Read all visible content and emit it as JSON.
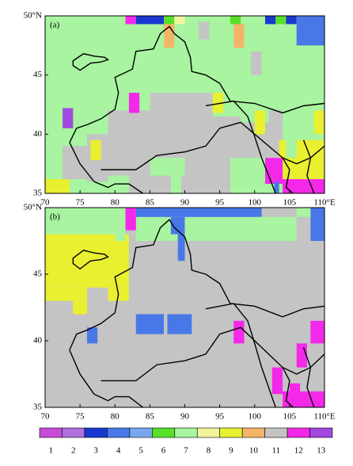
{
  "xlim": [
    70,
    110
  ],
  "ylim": [
    35,
    50
  ],
  "xticks": [
    70,
    75,
    80,
    85,
    90,
    95,
    100,
    105,
    {
      "value": 110,
      "label": "110°E"
    }
  ],
  "yticks": [
    35,
    40,
    45,
    {
      "value": 50,
      "label": "50°N"
    }
  ],
  "legend": {
    "categories": [
      1,
      2,
      3,
      4,
      5,
      6,
      7,
      8,
      9,
      10,
      11,
      12,
      13
    ],
    "colors": [
      "#c84ad8",
      "#b070e0",
      "#1838d0",
      "#4878e8",
      "#78a8ec",
      "#58e028",
      "#a8f4a0",
      "#f0f49c",
      "#e8f030",
      "#f4b468",
      "#c4c4c4",
      "#f428e8",
      "#a048e0"
    ]
  },
  "panels": [
    {
      "label": "(a)",
      "background": 7,
      "patches": [
        [
          85,
          94,
          38,
          43.5,
          11
        ],
        [
          79,
          85,
          36.5,
          42,
          11
        ],
        [
          76,
          79,
          36,
          40,
          11
        ],
        [
          72.5,
          76,
          36.2,
          39,
          11
        ],
        [
          94,
          98,
          38,
          41.5,
          11
        ],
        [
          90,
          96.5,
          35,
          38,
          11
        ],
        [
          82,
          90,
          35,
          36.5,
          11
        ],
        [
          98,
          104,
          38,
          41,
          11
        ],
        [
          102,
          104,
          41,
          42,
          11
        ],
        [
          92,
          93.5,
          48,
          49.5,
          11
        ],
        [
          99.5,
          101,
          45,
          47,
          11
        ],
        [
          88,
          89.5,
          35,
          37,
          7
        ],
        [
          100.5,
          102,
          41,
          43,
          7
        ],
        [
          81.5,
          83,
          49.3,
          50,
          12
        ],
        [
          83,
          87,
          49.3,
          50,
          3
        ],
        [
          87,
          88.5,
          49.3,
          50,
          6
        ],
        [
          88.5,
          90,
          49.3,
          50,
          8
        ],
        [
          96.5,
          98,
          49.3,
          50,
          6
        ],
        [
          101.5,
          103,
          49.3,
          50,
          3
        ],
        [
          103,
          104.5,
          49.3,
          50,
          6
        ],
        [
          104.5,
          106,
          49.3,
          50,
          3
        ],
        [
          106,
          110,
          47.5,
          50,
          4
        ],
        [
          87,
          88.5,
          47.3,
          49.3,
          10
        ],
        [
          97,
          98.5,
          47.3,
          49.3,
          10
        ],
        [
          82,
          83.5,
          41.8,
          43.5,
          12
        ],
        [
          72.5,
          74,
          40.5,
          42.2,
          13
        ],
        [
          94,
          95.5,
          41.8,
          43.5,
          9
        ],
        [
          76.5,
          78,
          37.8,
          39.5,
          9
        ],
        [
          70,
          73.5,
          35,
          36.2,
          9
        ],
        [
          100,
          101.5,
          40,
          42,
          9
        ],
        [
          108.5,
          110,
          40,
          42,
          9
        ],
        [
          103.5,
          110,
          36.2,
          39.5,
          9
        ],
        [
          104.5,
          106,
          38,
          39.5,
          7
        ],
        [
          101.5,
          104,
          35.8,
          38,
          12
        ],
        [
          104,
          110,
          35,
          36.2,
          12
        ],
        [
          102.8,
          103.5,
          35,
          36,
          4
        ]
      ]
    },
    {
      "label": "(b)",
      "background": 11,
      "patches": [
        [
          70,
          82,
          44,
          48,
          9
        ],
        [
          70,
          76,
          43,
          44,
          9
        ],
        [
          79,
          82,
          43,
          44,
          9
        ],
        [
          74,
          76,
          42,
          43,
          9
        ],
        [
          70,
          80,
          48,
          50,
          7
        ],
        [
          80,
          81.5,
          47.5,
          50,
          7
        ],
        [
          83,
          89,
          47.5,
          49.3,
          7
        ],
        [
          90,
          106,
          47.5,
          49.3,
          7
        ],
        [
          106,
          108,
          49.3,
          50,
          7
        ],
        [
          108,
          110,
          47.5,
          50,
          4
        ],
        [
          81.5,
          83,
          48.3,
          50,
          12
        ],
        [
          83,
          101,
          49.3,
          50,
          4
        ],
        [
          88,
          90,
          48,
          49.3,
          4
        ],
        [
          89,
          90,
          46,
          48,
          4
        ],
        [
          83,
          87,
          40.5,
          42,
          4
        ],
        [
          87.5,
          91,
          40.5,
          42,
          4
        ],
        [
          76,
          77.5,
          39.8,
          41,
          4
        ],
        [
          97,
          98.5,
          39.8,
          41.5,
          12
        ],
        [
          108,
          110,
          39.8,
          41.5,
          12
        ],
        [
          106,
          107.5,
          38,
          39.8,
          12
        ],
        [
          102.5,
          104,
          36,
          38,
          12
        ],
        [
          104,
          110,
          35,
          36.2,
          12
        ],
        [
          105,
          106.5,
          36,
          36.8,
          12
        ]
      ]
    }
  ]
}
